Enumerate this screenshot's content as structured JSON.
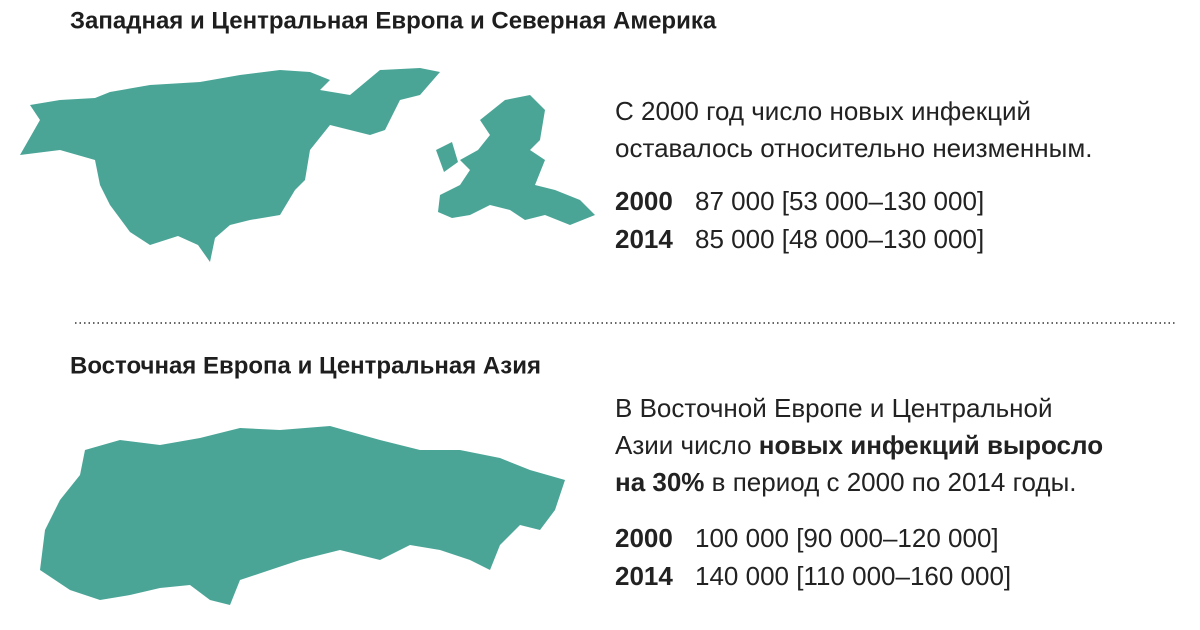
{
  "sections": [
    {
      "title": "Западная и Центральная Европа и Северная Америка",
      "description": [
        [
          {
            "text": "С 2000 год число новых инфекций",
            "bold": false
          }
        ],
        [
          {
            "text": "оставалось относительно неизменным.",
            "bold": false
          }
        ]
      ],
      "rows": [
        {
          "year": "2000",
          "value": "87 000 [53 000–130 000]"
        },
        {
          "year": "2014",
          "value": "85 000 [48 000–130 000]"
        }
      ]
    },
    {
      "title": "Восточная Европа и Центральная Азия",
      "description": [
        [
          {
            "text": "В Восточной Европе и Центральной",
            "bold": false
          }
        ],
        [
          {
            "text": "Азии число ",
            "bold": false
          },
          {
            "text": "новых инфекций выросло",
            "bold": true
          }
        ],
        [
          {
            "text": "на 30%",
            "bold": true
          },
          {
            "text": " в период с 2000 по 2014 годы.",
            "bold": false
          }
        ]
      ],
      "rows": [
        {
          "year": "2000",
          "value": "100 000 [90 000–120 000]"
        },
        {
          "year": "2014",
          "value": "140 000 [110 000–160 000]"
        }
      ]
    }
  ]
}
